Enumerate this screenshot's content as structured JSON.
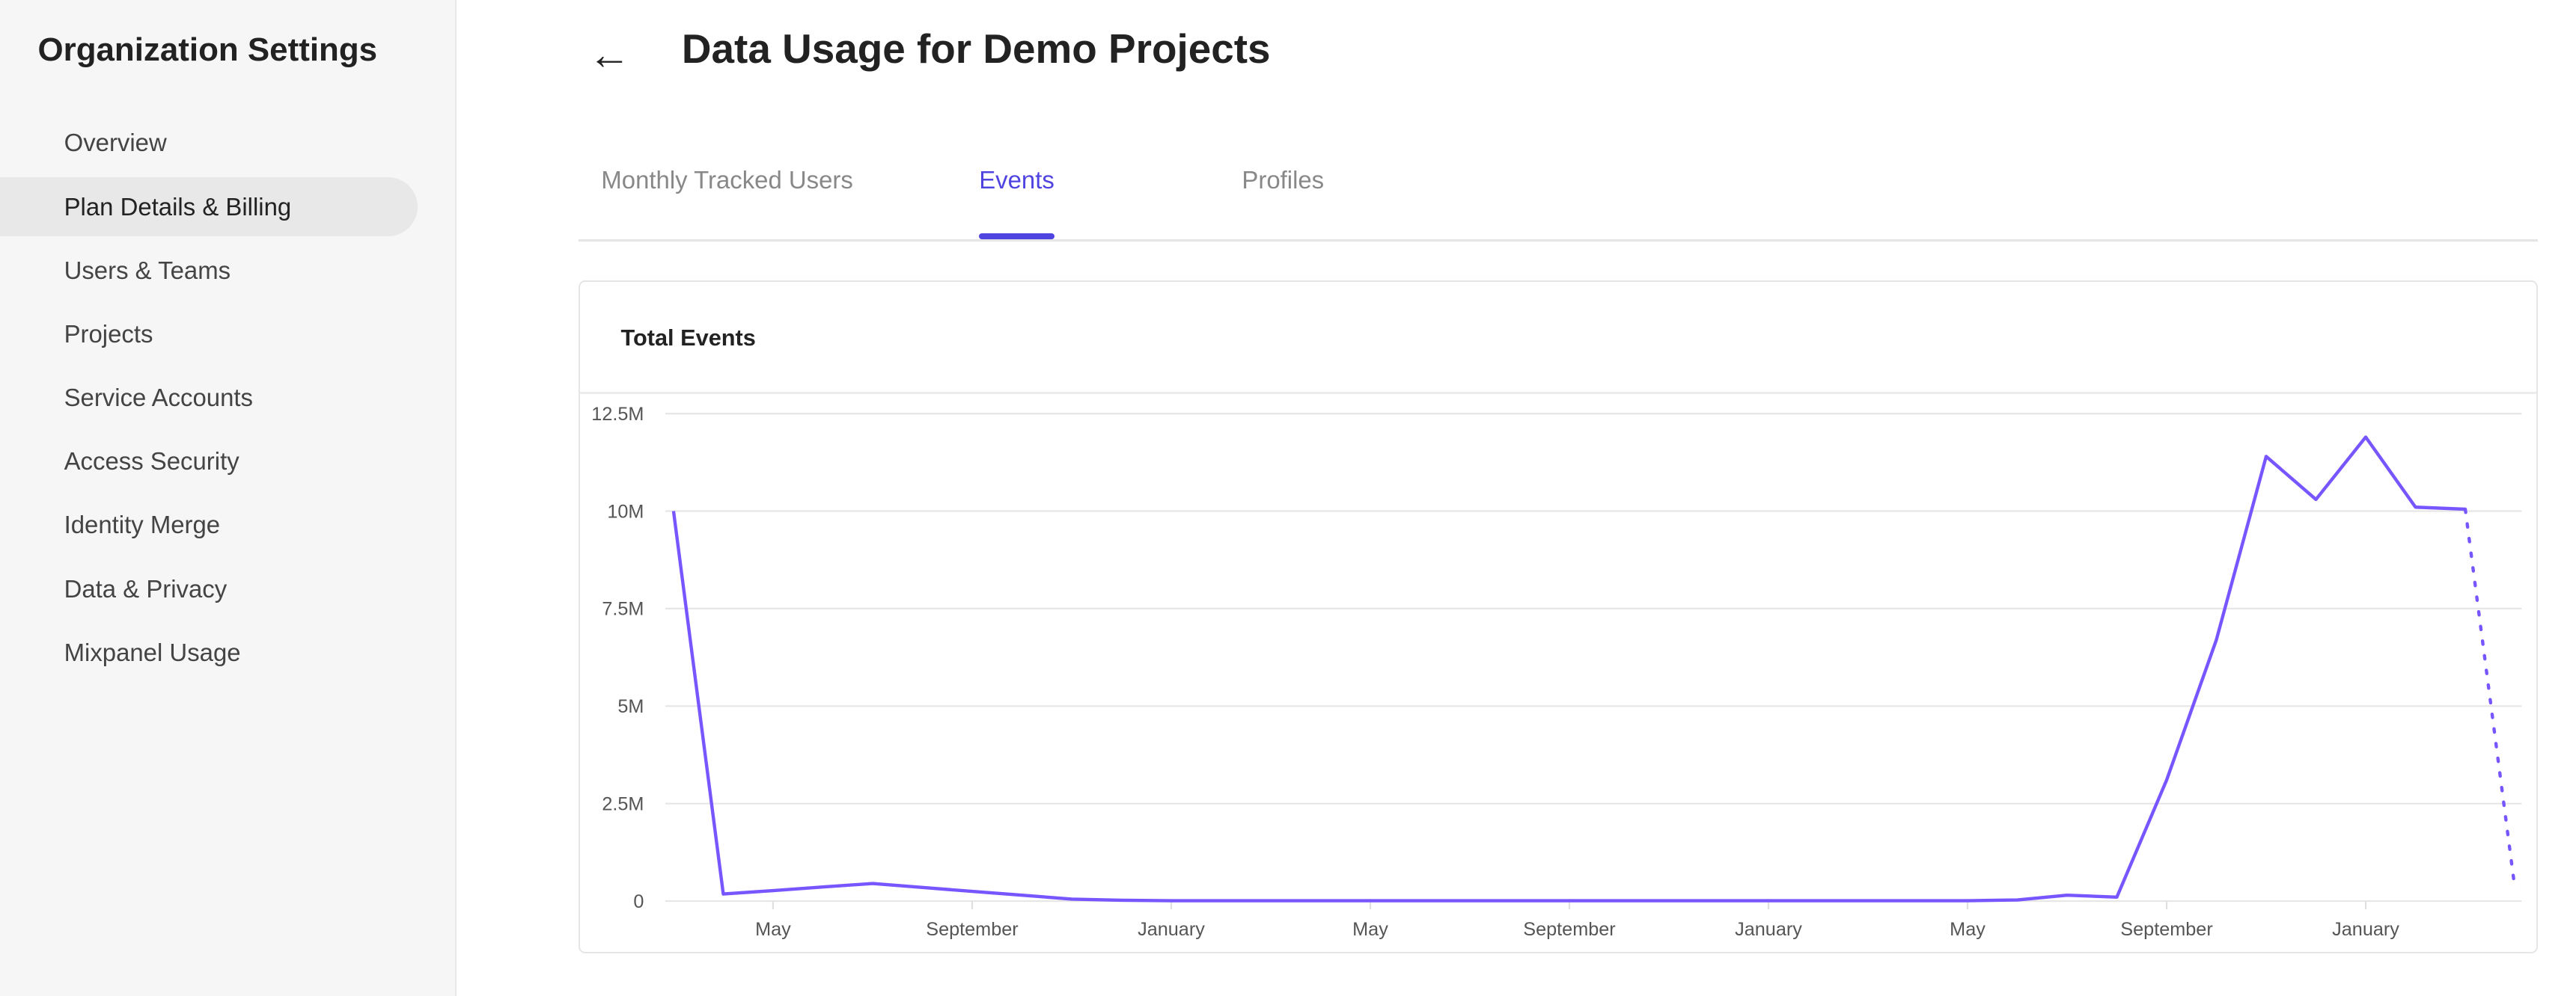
{
  "sidebar": {
    "title": "Organization Settings",
    "items": [
      {
        "label": "Overview",
        "active": false
      },
      {
        "label": "Plan Details & Billing",
        "active": true
      },
      {
        "label": "Users & Teams",
        "active": false
      },
      {
        "label": "Projects",
        "active": false
      },
      {
        "label": "Service Accounts",
        "active": false
      },
      {
        "label": "Access Security",
        "active": false
      },
      {
        "label": "Identity Merge",
        "active": false
      },
      {
        "label": "Data & Privacy",
        "active": false
      },
      {
        "label": "Mixpanel Usage",
        "active": false
      }
    ]
  },
  "header": {
    "back_icon": "arrow-left-icon",
    "title": "Data Usage for Demo Projects"
  },
  "tabs": [
    {
      "label": "Monthly Tracked Users",
      "active": false
    },
    {
      "label": "Events",
      "active": true
    },
    {
      "label": "Profiles",
      "active": false
    }
  ],
  "colors": {
    "accent": "#4f44e0",
    "line": "#7856ff"
  },
  "chart_data": {
    "type": "line",
    "title": "Total Events",
    "ylim": [
      0,
      12500000
    ],
    "yticks": [
      "0",
      "2.5M",
      "5M",
      "7.5M",
      "10M",
      "12.5M"
    ],
    "ytick_values": [
      0,
      2500000,
      5000000,
      7500000,
      10000000,
      12500000
    ],
    "xticks": [
      "May",
      "September",
      "January",
      "May",
      "September",
      "January",
      "May",
      "September",
      "January"
    ],
    "grid": true,
    "x": [
      "Mar",
      "Apr",
      "May",
      "Jun",
      "Jul",
      "Aug",
      "Sep",
      "Oct",
      "Nov",
      "Dec",
      "Jan",
      "Feb",
      "Mar",
      "Apr",
      "May",
      "Jun",
      "Jul",
      "Aug",
      "Sep",
      "Oct",
      "Nov",
      "Dec",
      "Jan",
      "Feb",
      "Mar",
      "Apr",
      "May",
      "Jun",
      "Jul",
      "Aug",
      "Sep",
      "Oct",
      "Nov",
      "Dec",
      "Jan",
      "Feb",
      "Mar",
      "Apr"
    ],
    "values": [
      10000000,
      180000,
      270000,
      360000,
      450000,
      350000,
      250000,
      150000,
      50000,
      20000,
      10000,
      10000,
      10000,
      10000,
      10000,
      10000,
      10000,
      10000,
      10000,
      10000,
      10000,
      10000,
      10000,
      10000,
      10000,
      10000,
      10000,
      30000,
      150000,
      100000,
      3100000,
      6700000,
      11400000,
      10300000,
      11900000,
      10100000,
      10050000,
      300000
    ],
    "dotted_last_segment": true
  }
}
